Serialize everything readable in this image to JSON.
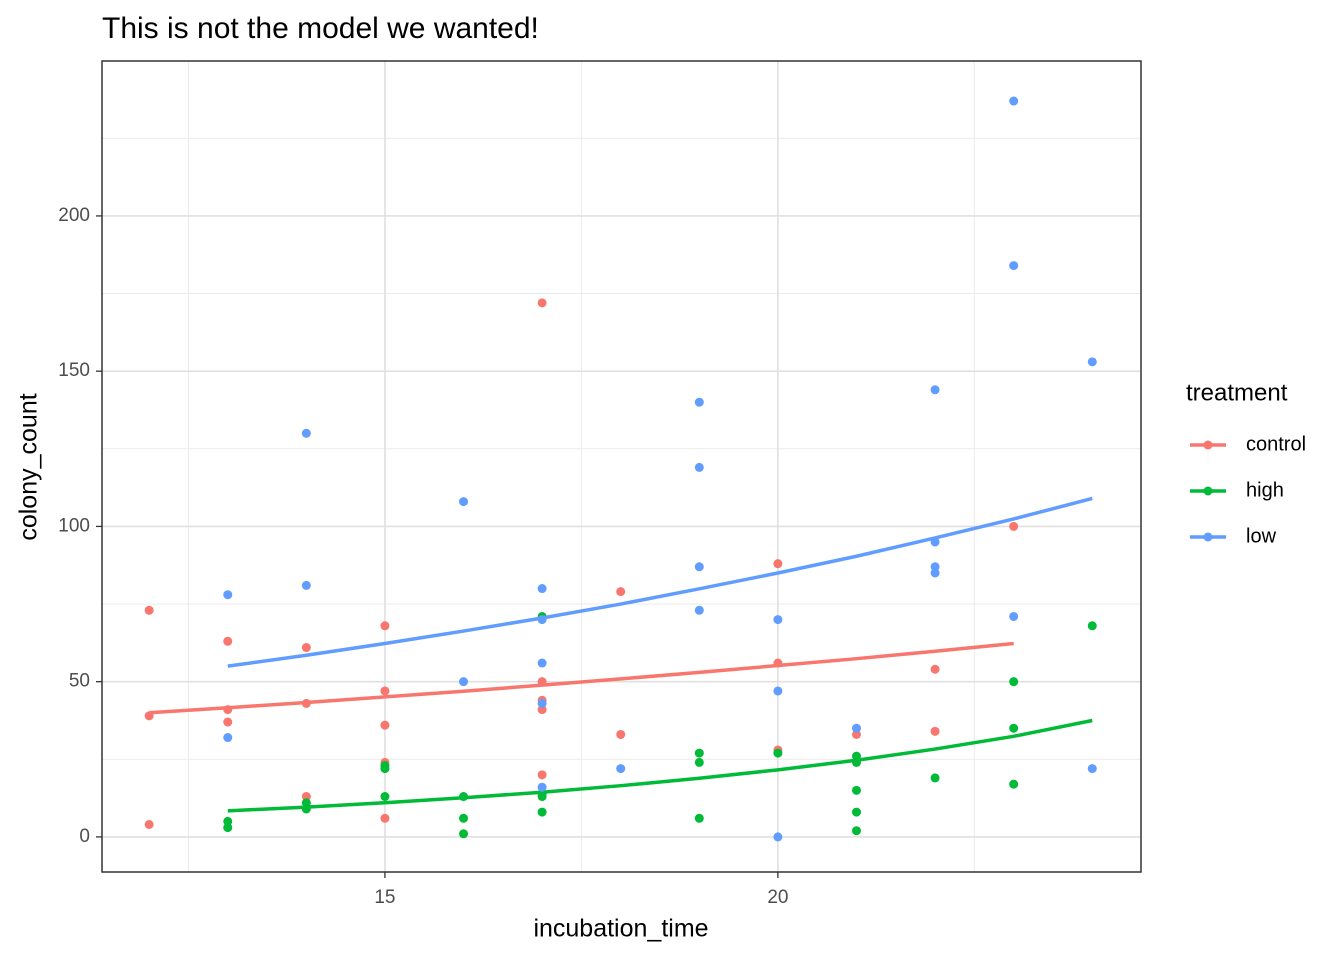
{
  "chart_data": {
    "type": "scatter",
    "title": "This is not the model we wanted!",
    "x_label": "incubation_time",
    "y_label": "colony_count",
    "legend_title": "treatment",
    "legend_position": "right",
    "xlim": [
      11.4,
      24.62
    ],
    "ylim": [
      -11.3,
      249.9
    ],
    "xticks": [
      15,
      20
    ],
    "yticks": [
      0,
      50,
      100,
      150,
      200
    ],
    "x_minor_ticks": [
      12.5,
      17.5,
      22.5
    ],
    "y_minor_ticks": [
      25,
      75,
      125,
      175,
      225
    ],
    "grid": true,
    "series": [
      {
        "name": "control",
        "color": "#F8766D",
        "x": [
          12,
          12,
          12,
          13,
          13,
          13,
          14,
          14,
          14,
          15,
          15,
          15,
          15,
          15,
          17,
          17,
          17,
          17,
          17,
          18,
          18,
          20,
          20,
          20,
          21,
          22,
          22,
          23
        ],
        "values": [
          73,
          39,
          4,
          63,
          41,
          37,
          61,
          43,
          13,
          68,
          47,
          36,
          24,
          6,
          172,
          50,
          44,
          41,
          20,
          79,
          33,
          88,
          56,
          28,
          33,
          54,
          34,
          100
        ],
        "fit_x": [
          12,
          13,
          14,
          15,
          16,
          17,
          18,
          19,
          20,
          21,
          22,
          23
        ],
        "fit_values": [
          40,
          41.6,
          43.3,
          45.1,
          46.9,
          48.9,
          50.9,
          53,
          55.2,
          57.4,
          59.8,
          62.3
        ]
      },
      {
        "name": "high",
        "color": "#00BA38",
        "x": [
          13,
          13,
          14,
          14,
          15,
          15,
          15,
          16,
          16,
          16,
          17,
          17,
          17,
          17,
          19,
          19,
          19,
          20,
          21,
          21,
          21,
          21,
          21,
          22,
          23,
          23,
          23,
          24
        ],
        "values": [
          5,
          3,
          11,
          9,
          23,
          22,
          13,
          13,
          6,
          1,
          71,
          14,
          13,
          8,
          27,
          24,
          6,
          27,
          26,
          24,
          15,
          8,
          2,
          19,
          50,
          35,
          17,
          68
        ],
        "fit_x": [
          13,
          14,
          15,
          16,
          17,
          18,
          19,
          20,
          21,
          22,
          23,
          24
        ],
        "fit_values": [
          8.4,
          9.6,
          11,
          12.6,
          14.4,
          16.5,
          18.9,
          21.6,
          24.7,
          28.3,
          32.4,
          37.5
        ]
      },
      {
        "name": "low",
        "color": "#619CFF",
        "x": [
          13,
          13,
          14,
          14,
          16,
          16,
          17,
          17,
          17,
          17,
          17,
          18,
          19,
          19,
          19,
          19,
          20,
          20,
          20,
          21,
          22,
          22,
          22,
          22,
          23,
          23,
          23,
          24,
          24
        ],
        "values": [
          78,
          32,
          130,
          81,
          108,
          50,
          80,
          70,
          56,
          43,
          16,
          22,
          140,
          119,
          87,
          73,
          70,
          47,
          0,
          35,
          144,
          95,
          87,
          85,
          237,
          184,
          71,
          153,
          22
        ],
        "fit_x": [
          13,
          14,
          15,
          16,
          17,
          18,
          19,
          20,
          21,
          22,
          23,
          24
        ],
        "fit_values": [
          55,
          58.5,
          62.3,
          66.3,
          70.5,
          75,
          79.9,
          85,
          90.4,
          96.3,
          102.4,
          109
        ]
      }
    ]
  }
}
